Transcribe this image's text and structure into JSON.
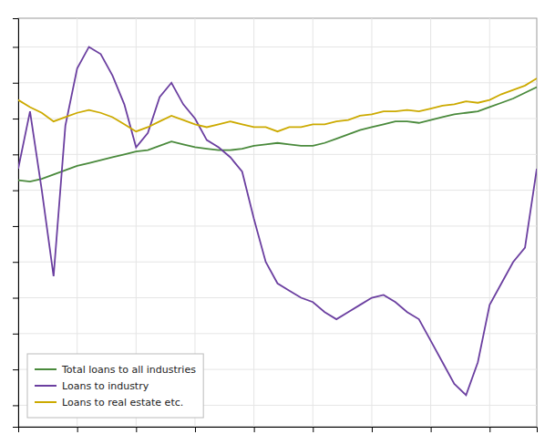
{
  "chart_data": {
    "type": "line",
    "x": [
      0,
      1,
      2,
      3,
      4,
      5,
      6,
      7,
      8,
      9,
      10,
      11,
      12,
      13,
      14,
      15,
      16,
      17,
      18,
      19,
      20,
      21,
      22,
      23,
      24,
      25,
      26,
      27,
      28,
      29,
      30,
      31,
      32,
      33,
      34,
      35,
      36,
      37,
      38,
      39,
      40,
      41,
      42,
      43,
      44
    ],
    "series": [
      {
        "name": "Total loans to all industries",
        "color": "#4a8a3c",
        "values": [
          3.2,
          3.1,
          3.3,
          3.6,
          3.9,
          4.2,
          4.4,
          4.6,
          4.8,
          5.0,
          5.2,
          5.3,
          5.6,
          5.9,
          5.7,
          5.5,
          5.4,
          5.3,
          5.3,
          5.4,
          5.6,
          5.7,
          5.8,
          5.7,
          5.6,
          5.6,
          5.8,
          6.1,
          6.4,
          6.7,
          6.9,
          7.1,
          7.3,
          7.3,
          7.2,
          7.4,
          7.6,
          7.8,
          7.9,
          8.0,
          8.3,
          8.6,
          8.9,
          9.3,
          9.7
        ]
      },
      {
        "name": "Loans to industry",
        "color": "#6b3fa0",
        "values": [
          4.0,
          8.0,
          2.5,
          -3.5,
          7.0,
          11.0,
          12.5,
          12.0,
          10.5,
          8.5,
          5.5,
          6.5,
          9.0,
          10.0,
          8.5,
          7.5,
          6.0,
          5.5,
          4.8,
          3.8,
          0.5,
          -2.5,
          -4.0,
          -4.5,
          -5.0,
          -5.3,
          -6.0,
          -6.5,
          -6.0,
          -5.5,
          -5.0,
          -4.8,
          -5.3,
          -6.0,
          -6.5,
          -8.0,
          -9.5,
          -11.0,
          -11.8,
          -9.5,
          -5.5,
          -4.0,
          -2.5,
          -1.5,
          4.0
        ]
      },
      {
        "name": "Loans to real estate etc.",
        "color": "#ccaa00",
        "values": [
          8.8,
          8.3,
          7.9,
          7.3,
          7.6,
          7.9,
          8.1,
          7.9,
          7.6,
          7.1,
          6.6,
          6.9,
          7.3,
          7.7,
          7.4,
          7.1,
          6.9,
          7.1,
          7.3,
          7.1,
          6.9,
          6.9,
          6.6,
          6.9,
          6.9,
          7.1,
          7.1,
          7.3,
          7.4,
          7.7,
          7.8,
          8.0,
          8.0,
          8.1,
          8.0,
          8.2,
          8.4,
          8.5,
          8.7,
          8.6,
          8.8,
          9.2,
          9.5,
          9.8,
          10.3
        ]
      }
    ],
    "xlim": [
      0,
      44
    ],
    "xticks": [
      0,
      5,
      10,
      15,
      20,
      25,
      30,
      35,
      40
    ],
    "ylim": [
      -14.0,
      14.5
    ],
    "yticks": [
      -12.5,
      -10,
      -7.5,
      -5,
      -2.5,
      0,
      2.5,
      5,
      7.5,
      10,
      12.5
    ],
    "grid": true,
    "legend": "lower left",
    "tick_labels": false
  }
}
